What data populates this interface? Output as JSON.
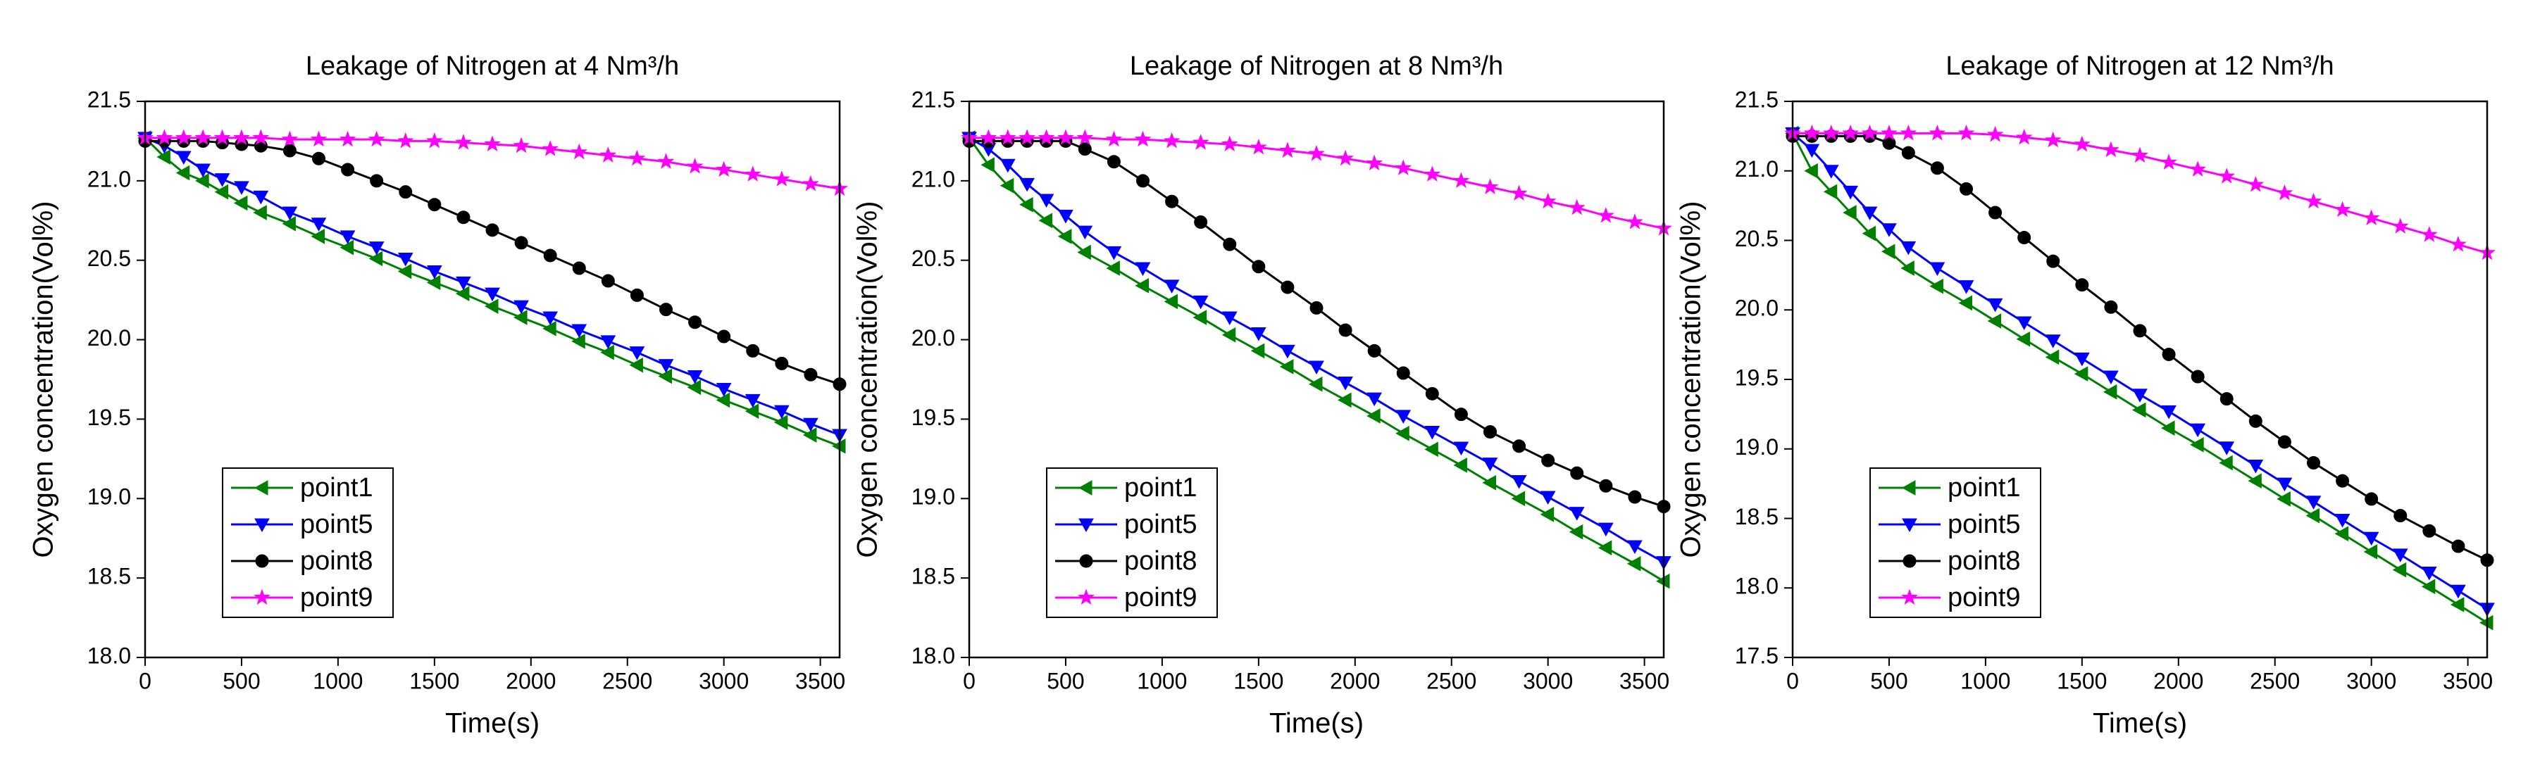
{
  "chart_data": [
    {
      "type": "line",
      "title": "Leakage of Nitrogen at 4 Nm³/h",
      "xlabel": "Time(s)",
      "ylabel": "Oxygen concentration(Vol%)",
      "x": [
        0,
        100,
        200,
        300,
        400,
        500,
        600,
        750,
        900,
        1050,
        1200,
        1350,
        1500,
        1650,
        1800,
        1950,
        2100,
        2250,
        2400,
        2550,
        2700,
        2850,
        3000,
        3150,
        3300,
        3450,
        3600
      ],
      "xlim": [
        0,
        3600
      ],
      "xticks": [
        0,
        500,
        1000,
        1500,
        2000,
        2500,
        3000,
        3500
      ],
      "ylim": [
        18,
        21.5
      ],
      "yticks": [
        {
          "value": 18,
          "label": "18.0"
        },
        18.5,
        {
          "value": 19,
          "label": "19.0"
        },
        19.5,
        {
          "value": 20,
          "label": "20.0"
        },
        20.5,
        {
          "value": 21,
          "label": "21.0"
        },
        21.5
      ],
      "legend": "lower left",
      "series": [
        {
          "name": "point1",
          "color": "#008000",
          "marker": "triangle-left",
          "values": [
            21.27,
            21.15,
            21.05,
            21.0,
            20.93,
            20.86,
            20.8,
            20.73,
            20.65,
            20.58,
            20.51,
            20.43,
            20.36,
            20.29,
            20.21,
            20.14,
            20.07,
            19.99,
            19.92,
            19.84,
            19.77,
            19.7,
            19.62,
            19.55,
            19.48,
            19.4,
            19.33
          ]
        },
        {
          "name": "point5",
          "color": "#0000ff",
          "marker": "triangle-down",
          "values": [
            21.27,
            21.22,
            21.15,
            21.07,
            21.01,
            20.96,
            20.9,
            20.8,
            20.73,
            20.65,
            20.58,
            20.51,
            20.43,
            20.36,
            20.29,
            20.21,
            20.14,
            20.06,
            19.99,
            19.92,
            19.84,
            19.77,
            19.69,
            19.62,
            19.55,
            19.47,
            19.4
          ]
        },
        {
          "name": "point8",
          "color": "#000000",
          "marker": "circle",
          "values": [
            21.25,
            21.25,
            21.25,
            21.25,
            21.24,
            21.23,
            21.22,
            21.19,
            21.14,
            21.07,
            21.0,
            20.93,
            20.85,
            20.77,
            20.69,
            20.61,
            20.53,
            20.45,
            20.37,
            20.28,
            20.19,
            20.11,
            20.02,
            19.93,
            19.85,
            19.78,
            19.72
          ]
        },
        {
          "name": "point9",
          "color": "#ff00ff",
          "marker": "star",
          "values": [
            21.27,
            21.27,
            21.27,
            21.27,
            21.27,
            21.27,
            21.27,
            21.26,
            21.26,
            21.26,
            21.26,
            21.25,
            21.25,
            21.24,
            21.23,
            21.22,
            21.2,
            21.18,
            21.16,
            21.14,
            21.12,
            21.09,
            21.07,
            21.04,
            21.01,
            20.98,
            20.95
          ]
        }
      ]
    },
    {
      "type": "line",
      "title": "Leakage of Nitrogen at 8 Nm³/h",
      "xlabel": "Time(s)",
      "ylabel": "Oxygen concentration(Vol%)",
      "x": [
        0,
        100,
        200,
        300,
        400,
        500,
        600,
        750,
        900,
        1050,
        1200,
        1350,
        1500,
        1650,
        1800,
        1950,
        2100,
        2250,
        2400,
        2550,
        2700,
        2850,
        3000,
        3150,
        3300,
        3450,
        3600
      ],
      "xlim": [
        0,
        3600
      ],
      "xticks": [
        0,
        500,
        1000,
        1500,
        2000,
        2500,
        3000,
        3500
      ],
      "ylim": [
        18,
        21.5
      ],
      "yticks": [
        {
          "value": 18,
          "label": "18.0"
        },
        18.5,
        {
          "value": 19,
          "label": "19.0"
        },
        19.5,
        {
          "value": 20,
          "label": "20.0"
        },
        20.5,
        {
          "value": 21,
          "label": "21.0"
        },
        21.5
      ],
      "legend": "lower left",
      "series": [
        {
          "name": "point1",
          "color": "#008000",
          "marker": "triangle-left",
          "values": [
            21.27,
            21.1,
            20.97,
            20.85,
            20.75,
            20.65,
            20.55,
            20.45,
            20.34,
            20.24,
            20.14,
            20.03,
            19.93,
            19.83,
            19.72,
            19.62,
            19.52,
            19.41,
            19.31,
            19.21,
            19.1,
            19.0,
            18.9,
            18.79,
            18.69,
            18.59,
            18.48
          ]
        },
        {
          "name": "point5",
          "color": "#0000ff",
          "marker": "triangle-down",
          "values": [
            21.27,
            21.2,
            21.1,
            20.98,
            20.88,
            20.78,
            20.68,
            20.55,
            20.45,
            20.34,
            20.24,
            20.14,
            20.04,
            19.93,
            19.83,
            19.73,
            19.63,
            19.52,
            19.42,
            19.32,
            19.22,
            19.11,
            19.01,
            18.91,
            18.81,
            18.7,
            18.6
          ]
        },
        {
          "name": "point8",
          "color": "#000000",
          "marker": "circle",
          "values": [
            21.25,
            21.25,
            21.25,
            21.25,
            21.25,
            21.25,
            21.2,
            21.12,
            21.0,
            20.87,
            20.74,
            20.6,
            20.46,
            20.33,
            20.2,
            20.06,
            19.93,
            19.79,
            19.66,
            19.53,
            19.42,
            19.33,
            19.24,
            19.16,
            19.08,
            19.01,
            18.95
          ]
        },
        {
          "name": "point9",
          "color": "#ff00ff",
          "marker": "star",
          "values": [
            21.27,
            21.27,
            21.27,
            21.27,
            21.27,
            21.27,
            21.27,
            21.26,
            21.26,
            21.25,
            21.24,
            21.23,
            21.21,
            21.19,
            21.17,
            21.14,
            21.11,
            21.08,
            21.04,
            21.0,
            20.96,
            20.92,
            20.87,
            20.83,
            20.78,
            20.74,
            20.7
          ]
        }
      ]
    },
    {
      "type": "line",
      "title": "Leakage of Nitrogen at 12 Nm³/h",
      "xlabel": "Time(s)",
      "ylabel": "Oxygen concentration(Vol%)",
      "x": [
        0,
        100,
        200,
        300,
        400,
        500,
        600,
        750,
        900,
        1050,
        1200,
        1350,
        1500,
        1650,
        1800,
        1950,
        2100,
        2250,
        2400,
        2550,
        2700,
        2850,
        3000,
        3150,
        3300,
        3450,
        3600
      ],
      "xlim": [
        0,
        3600
      ],
      "xticks": [
        0,
        500,
        1000,
        1500,
        2000,
        2500,
        3000,
        3500
      ],
      "ylim": [
        17.5,
        21.5
      ],
      "yticks": [
        17.5,
        {
          "value": 18,
          "label": "18.0"
        },
        18.5,
        {
          "value": 19,
          "label": "19.0"
        },
        19.5,
        {
          "value": 20,
          "label": "20.0"
        },
        20.5,
        {
          "value": 21,
          "label": "21.0"
        },
        21.5
      ],
      "legend": "lower left",
      "series": [
        {
          "name": "point1",
          "color": "#008000",
          "marker": "triangle-left",
          "values": [
            21.27,
            21.0,
            20.85,
            20.7,
            20.55,
            20.42,
            20.3,
            20.17,
            20.05,
            19.92,
            19.79,
            19.66,
            19.54,
            19.41,
            19.28,
            19.15,
            19.03,
            18.9,
            18.77,
            18.64,
            18.52,
            18.39,
            18.26,
            18.13,
            18.01,
            17.88,
            17.75
          ]
        },
        {
          "name": "point5",
          "color": "#0000ff",
          "marker": "triangle-down",
          "values": [
            21.27,
            21.15,
            21.0,
            20.85,
            20.7,
            20.58,
            20.45,
            20.3,
            20.17,
            20.04,
            19.91,
            19.78,
            19.65,
            19.52,
            19.39,
            19.27,
            19.14,
            19.01,
            18.88,
            18.75,
            18.62,
            18.49,
            18.36,
            18.24,
            18.11,
            17.98,
            17.85
          ]
        },
        {
          "name": "point8",
          "color": "#000000",
          "marker": "circle",
          "values": [
            21.25,
            21.25,
            21.25,
            21.25,
            21.25,
            21.2,
            21.13,
            21.02,
            20.87,
            20.7,
            20.52,
            20.35,
            20.18,
            20.02,
            19.85,
            19.68,
            19.52,
            19.36,
            19.2,
            19.05,
            18.9,
            18.77,
            18.64,
            18.52,
            18.41,
            18.3,
            18.2
          ]
        },
        {
          "name": "point9",
          "color": "#ff00ff",
          "marker": "star",
          "values": [
            21.27,
            21.27,
            21.27,
            21.27,
            21.27,
            21.27,
            21.27,
            21.27,
            21.27,
            21.26,
            21.24,
            21.22,
            21.19,
            21.15,
            21.11,
            21.06,
            21.01,
            20.96,
            20.9,
            20.84,
            20.78,
            20.72,
            20.66,
            20.6,
            20.54,
            20.47,
            20.41
          ]
        }
      ]
    }
  ]
}
